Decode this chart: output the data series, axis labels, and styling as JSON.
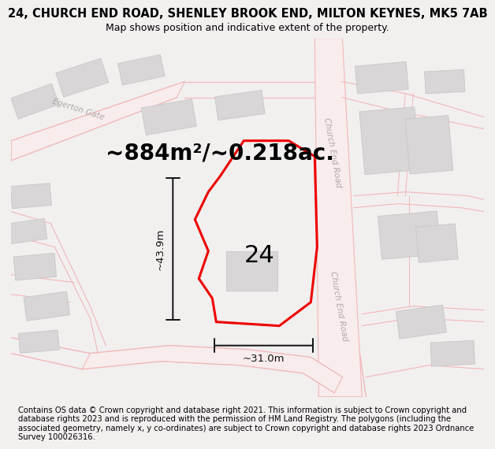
{
  "title": "24, CHURCH END ROAD, SHENLEY BROOK END, MILTON KEYNES, MK5 7AB",
  "subtitle": "Map shows position and indicative extent of the property.",
  "area_text": "~884m²/~0.218ac.",
  "plot_number": "24",
  "dim_vertical": "~43.9m",
  "dim_horizontal": "~31.0m",
  "road_label_top": "Church End Road",
  "road_label_bot": "Church End Road",
  "road_label_egerton": "Egerton Gate",
  "copyright_text": "Contains OS data © Crown copyright and database right 2021. This information is subject to Crown copyright and database rights 2023 and is reproduced with the permission of HM Land Registry. The polygons (including the associated geometry, namely x, y co-ordinates) are subject to Crown copyright and database rights 2023 Ordnance Survey 100026316.",
  "bg_color": "#f2efef",
  "map_bg": "#ffffff",
  "road_line_color": "#f0b8b8",
  "building_fill": "#d8d6d6",
  "building_edge": "#c8c6c6",
  "plot_line_color": "#ee0000",
  "dim_color": "#111111",
  "road_label_color": "#b0aaaa",
  "title_fontsize": 10.5,
  "subtitle_fontsize": 9,
  "area_fontsize": 20,
  "plot_label_fontsize": 22,
  "copyright_fontsize": 7.2,
  "dim_fontsize": 9.5,
  "road_label_fontsize": 7.5,
  "egerton_fontsize": 7.5
}
